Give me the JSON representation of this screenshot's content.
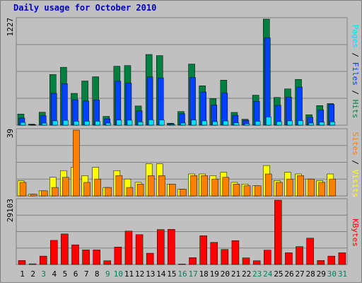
{
  "title": "Daily usage for October 2010",
  "chart_data": [
    {
      "type": "bar",
      "name": "hits-files-pages",
      "axis_max_label": "1227",
      "ylim": [
        0,
        1227
      ],
      "categories": [
        "1",
        "2",
        "3",
        "4",
        "5",
        "6",
        "7",
        "8",
        "9",
        "10",
        "11",
        "12",
        "13",
        "14",
        "15",
        "16",
        "17",
        "18",
        "19",
        "20",
        "21",
        "22",
        "23",
        "24",
        "25",
        "26",
        "27",
        "28",
        "29",
        "30",
        "31"
      ],
      "series": [
        {
          "name": "Hits",
          "color": "#008040",
          "values": [
            129,
            12,
            150,
            586,
            670,
            368,
            511,
            560,
            102,
            682,
            690,
            222,
            818,
            805,
            23,
            158,
            707,
            456,
            308,
            521,
            148,
            69,
            347,
            1227,
            321,
            419,
            530,
            121,
            227,
            250,
            0
          ]
        },
        {
          "name": "Files",
          "color": "#0040ff",
          "values": [
            82,
            6,
            110,
            368,
            481,
            294,
            279,
            292,
            73,
            508,
            485,
            166,
            558,
            547,
            16,
            132,
            553,
            384,
            233,
            371,
            114,
            55,
            276,
            1011,
            229,
            325,
            441,
            92,
            176,
            239,
            0
          ]
        },
        {
          "name": "Pages",
          "color": "#00e0ff",
          "values": [
            32,
            3,
            24,
            50,
            56,
            46,
            45,
            46,
            24,
            59,
            58,
            38,
            62,
            59,
            8,
            25,
            59,
            50,
            41,
            49,
            27,
            17,
            45,
            96,
            41,
            50,
            53,
            25,
            35,
            39,
            0
          ]
        }
      ],
      "legend_labels": [
        "Pages",
        "Files",
        "Hits"
      ]
    },
    {
      "type": "bar",
      "name": "visits-sites",
      "axis_max_label": "39",
      "ylim": [
        0,
        39
      ],
      "categories": [
        "1",
        "2",
        "3",
        "4",
        "5",
        "6",
        "7",
        "8",
        "9",
        "10",
        "11",
        "12",
        "13",
        "14",
        "15",
        "16",
        "17",
        "18",
        "19",
        "20",
        "21",
        "22",
        "23",
        "24",
        "25",
        "26",
        "27",
        "28",
        "29",
        "30",
        "31"
      ],
      "series": [
        {
          "name": "Visits",
          "color": "#ffff00",
          "values": [
            9,
            1,
            3,
            11,
            15,
            17,
            12,
            17,
            5,
            15,
            10,
            8,
            19,
            19,
            7,
            4,
            13,
            13,
            12,
            14,
            8,
            7,
            6,
            18,
            9,
            14,
            13,
            10,
            9,
            13,
            0
          ]
        },
        {
          "name": "Sites",
          "color": "#ff8000",
          "values": [
            8,
            1,
            3,
            5,
            11,
            39,
            8,
            10,
            5,
            12,
            5,
            7,
            12,
            12,
            7,
            4,
            12,
            12,
            10,
            11,
            7,
            6,
            6,
            13,
            8,
            10,
            12,
            10,
            8,
            10,
            0
          ]
        }
      ],
      "legend_labels": [
        "Sites",
        "Visits"
      ]
    },
    {
      "type": "bar",
      "name": "kbytes",
      "axis_max_label": "29103",
      "ylim": [
        0,
        29103
      ],
      "categories": [
        "1",
        "2",
        "3",
        "4",
        "5",
        "6",
        "7",
        "8",
        "9",
        "10",
        "11",
        "12",
        "13",
        "14",
        "15",
        "16",
        "17",
        "18",
        "19",
        "20",
        "21",
        "22",
        "23",
        "24",
        "25",
        "26",
        "27",
        "28",
        "29",
        "30",
        "31"
      ],
      "series": [
        {
          "name": "KBytes",
          "color": "#ff0000",
          "values": [
            1800,
            300,
            3800,
            10900,
            13800,
            8900,
            6600,
            6600,
            1700,
            7900,
            15100,
            13500,
            5100,
            15800,
            15900,
            200,
            3100,
            13000,
            10000,
            6800,
            10800,
            3000,
            1700,
            6500,
            29103,
            5300,
            8100,
            11900,
            1800,
            3800,
            5300
          ]
        }
      ],
      "legend_labels": [
        "KBytes"
      ]
    }
  ],
  "x_labels": [
    {
      "text": "1",
      "weekend": false
    },
    {
      "text": "2",
      "weekend": false
    },
    {
      "text": "3",
      "weekend": true
    },
    {
      "text": "4",
      "weekend": false
    },
    {
      "text": "5",
      "weekend": false
    },
    {
      "text": "6",
      "weekend": false
    },
    {
      "text": "7",
      "weekend": false
    },
    {
      "text": "8",
      "weekend": false
    },
    {
      "text": "9",
      "weekend": true
    },
    {
      "text": "10",
      "weekend": true
    },
    {
      "text": "11",
      "weekend": false
    },
    {
      "text": "12",
      "weekend": false
    },
    {
      "text": "13",
      "weekend": false
    },
    {
      "text": "14",
      "weekend": false
    },
    {
      "text": "15",
      "weekend": false
    },
    {
      "text": "16",
      "weekend": true
    },
    {
      "text": "17",
      "weekend": true
    },
    {
      "text": "18",
      "weekend": false
    },
    {
      "text": "19",
      "weekend": false
    },
    {
      "text": "20",
      "weekend": false
    },
    {
      "text": "21",
      "weekend": false
    },
    {
      "text": "22",
      "weekend": false
    },
    {
      "text": "23",
      "weekend": true
    },
    {
      "text": "24",
      "weekend": true
    },
    {
      "text": "25",
      "weekend": false
    },
    {
      "text": "26",
      "weekend": false
    },
    {
      "text": "27",
      "weekend": false
    },
    {
      "text": "28",
      "weekend": false
    },
    {
      "text": "29",
      "weekend": false
    },
    {
      "text": "30",
      "weekend": true
    },
    {
      "text": "31",
      "weekend": true
    }
  ],
  "colors": {
    "weekday_label": "#000000",
    "weekend_label": "#00805c",
    "separator": "#000000"
  }
}
